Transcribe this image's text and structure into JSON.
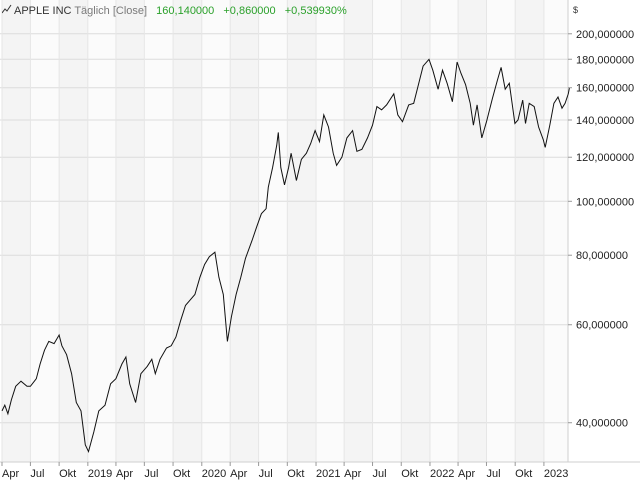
{
  "header": {
    "name": "APPLE INC",
    "interval": "Täglich",
    "mode": "[Close]",
    "last": "160,140000",
    "change": "+0,860000",
    "change_pct": "+0,539930%",
    "icon": "line-chart-icon",
    "change_color": "#2aa02a"
  },
  "chart_data": {
    "type": "line",
    "title": "APPLE INC",
    "y_scale": "log",
    "y_unit": "$",
    "ylim": [
      34,
      210
    ],
    "grid": true,
    "y_ticks": [
      {
        "value": 40,
        "label": "40,000000"
      },
      {
        "value": 60,
        "label": "60,000000"
      },
      {
        "value": 80,
        "label": "80,000000"
      },
      {
        "value": 100,
        "label": "100,000000"
      },
      {
        "value": 120,
        "label": "120,000000"
      },
      {
        "value": 140,
        "label": "140,000000"
      },
      {
        "value": 160,
        "label": "160,000000"
      },
      {
        "value": 180,
        "label": "180,000000"
      },
      {
        "value": 200,
        "label": "200,000000"
      }
    ],
    "x_range": [
      "2018-04-01",
      "2023-03-31"
    ],
    "x_ticks": [
      {
        "date": "2018-04-01",
        "label": "Apr"
      },
      {
        "date": "2018-07-01",
        "label": "Jul"
      },
      {
        "date": "2018-10-01",
        "label": "Okt"
      },
      {
        "date": "2019-01-01",
        "label": "2019"
      },
      {
        "date": "2019-04-01",
        "label": "Apr"
      },
      {
        "date": "2019-07-01",
        "label": "Jul"
      },
      {
        "date": "2019-10-01",
        "label": "Okt"
      },
      {
        "date": "2020-01-01",
        "label": "2020"
      },
      {
        "date": "2020-04-01",
        "label": "Apr"
      },
      {
        "date": "2020-07-01",
        "label": "Jul"
      },
      {
        "date": "2020-10-01",
        "label": "Okt"
      },
      {
        "date": "2021-01-01",
        "label": "2021"
      },
      {
        "date": "2021-04-01",
        "label": "Apr"
      },
      {
        "date": "2021-07-01",
        "label": "Jul"
      },
      {
        "date": "2021-10-01",
        "label": "Okt"
      },
      {
        "date": "2022-01-01",
        "label": "2022"
      },
      {
        "date": "2022-04-01",
        "label": "Apr"
      },
      {
        "date": "2022-07-01",
        "label": "Jul"
      },
      {
        "date": "2022-10-01",
        "label": "Okt"
      },
      {
        "date": "2023-01-01",
        "label": "2023"
      }
    ],
    "series": [
      {
        "color": "#111111",
        "points": [
          [
            "2018-04-01",
            42
          ],
          [
            "2018-04-10",
            43
          ],
          [
            "2018-04-20",
            41.5
          ],
          [
            "2018-05-01",
            44
          ],
          [
            "2018-05-15",
            46.5
          ],
          [
            "2018-06-01",
            47.5
          ],
          [
            "2018-06-20",
            46.5
          ],
          [
            "2018-07-01",
            46.5
          ],
          [
            "2018-07-20",
            48
          ],
          [
            "2018-08-01",
            51
          ],
          [
            "2018-08-15",
            54
          ],
          [
            "2018-08-29",
            56
          ],
          [
            "2018-09-15",
            55.5
          ],
          [
            "2018-10-01",
            57.5
          ],
          [
            "2018-10-10",
            55
          ],
          [
            "2018-10-25",
            53
          ],
          [
            "2018-11-10",
            49
          ],
          [
            "2018-11-25",
            43.5
          ],
          [
            "2018-12-10",
            42
          ],
          [
            "2018-12-24",
            36.5
          ],
          [
            "2019-01-03",
            35.5
          ],
          [
            "2019-01-20",
            38.5
          ],
          [
            "2019-02-05",
            42
          ],
          [
            "2019-02-25",
            43
          ],
          [
            "2019-03-15",
            47
          ],
          [
            "2019-04-01",
            48
          ],
          [
            "2019-04-20",
            51
          ],
          [
            "2019-05-03",
            52.5
          ],
          [
            "2019-05-15",
            47
          ],
          [
            "2019-06-03",
            43.5
          ],
          [
            "2019-06-20",
            49
          ],
          [
            "2019-07-10",
            50.5
          ],
          [
            "2019-07-25",
            52
          ],
          [
            "2019-08-05",
            49
          ],
          [
            "2019-08-20",
            52
          ],
          [
            "2019-09-10",
            54.5
          ],
          [
            "2019-09-25",
            55
          ],
          [
            "2019-10-10",
            57
          ],
          [
            "2019-10-25",
            61
          ],
          [
            "2019-11-10",
            65
          ],
          [
            "2019-11-25",
            66.5
          ],
          [
            "2019-12-10",
            68
          ],
          [
            "2019-12-26",
            73
          ],
          [
            "2020-01-10",
            77
          ],
          [
            "2020-01-25",
            79.5
          ],
          [
            "2020-02-12",
            81
          ],
          [
            "2020-02-25",
            73
          ],
          [
            "2020-03-10",
            68
          ],
          [
            "2020-03-23",
            56
          ],
          [
            "2020-04-05",
            62
          ],
          [
            "2020-04-20",
            68
          ],
          [
            "2020-05-05",
            73
          ],
          [
            "2020-05-20",
            79
          ],
          [
            "2020-06-10",
            85
          ],
          [
            "2020-06-25",
            90
          ],
          [
            "2020-07-10",
            95
          ],
          [
            "2020-07-25",
            97
          ],
          [
            "2020-08-01",
            106
          ],
          [
            "2020-08-15",
            115
          ],
          [
            "2020-08-28",
            126
          ],
          [
            "2020-09-02",
            133
          ],
          [
            "2020-09-10",
            115
          ],
          [
            "2020-09-22",
            107
          ],
          [
            "2020-10-05",
            115
          ],
          [
            "2020-10-13",
            122
          ],
          [
            "2020-10-30",
            109
          ],
          [
            "2020-11-15",
            119
          ],
          [
            "2020-12-01",
            122
          ],
          [
            "2020-12-15",
            127
          ],
          [
            "2020-12-29",
            134
          ],
          [
            "2021-01-12",
            128
          ],
          [
            "2021-01-26",
            143
          ],
          [
            "2021-02-10",
            136
          ],
          [
            "2021-02-25",
            122
          ],
          [
            "2021-03-08",
            116
          ],
          [
            "2021-03-25",
            120
          ],
          [
            "2021-04-10",
            130
          ],
          [
            "2021-04-28",
            134
          ],
          [
            "2021-05-12",
            123
          ],
          [
            "2021-05-28",
            124
          ],
          [
            "2021-06-15",
            130
          ],
          [
            "2021-07-01",
            137
          ],
          [
            "2021-07-15",
            148
          ],
          [
            "2021-07-30",
            146
          ],
          [
            "2021-08-15",
            149
          ],
          [
            "2021-09-07",
            156
          ],
          [
            "2021-09-20",
            143
          ],
          [
            "2021-10-05",
            139
          ],
          [
            "2021-10-25",
            149
          ],
          [
            "2021-11-10",
            150
          ],
          [
            "2021-11-25",
            162
          ],
          [
            "2021-12-10",
            175
          ],
          [
            "2021-12-29",
            180
          ],
          [
            "2022-01-10",
            172
          ],
          [
            "2022-01-27",
            159
          ],
          [
            "2022-02-10",
            172
          ],
          [
            "2022-02-25",
            163
          ],
          [
            "2022-03-14",
            151
          ],
          [
            "2022-03-29",
            178
          ],
          [
            "2022-04-10",
            170
          ],
          [
            "2022-04-25",
            162
          ],
          [
            "2022-05-10",
            150
          ],
          [
            "2022-05-20",
            137
          ],
          [
            "2022-06-01",
            149
          ],
          [
            "2022-06-16",
            130
          ],
          [
            "2022-07-01",
            139
          ],
          [
            "2022-07-20",
            153
          ],
          [
            "2022-08-05",
            165
          ],
          [
            "2022-08-17",
            174
          ],
          [
            "2022-08-30",
            159
          ],
          [
            "2022-09-12",
            163
          ],
          [
            "2022-09-30",
            138
          ],
          [
            "2022-10-10",
            140
          ],
          [
            "2022-10-25",
            152
          ],
          [
            "2022-11-03",
            138
          ],
          [
            "2022-11-15",
            150
          ],
          [
            "2022-12-01",
            148
          ],
          [
            "2022-12-15",
            136
          ],
          [
            "2022-12-30",
            129
          ],
          [
            "2023-01-05",
            125
          ],
          [
            "2023-01-20",
            137
          ],
          [
            "2023-02-02",
            150
          ],
          [
            "2023-02-15",
            154
          ],
          [
            "2023-02-28",
            147
          ],
          [
            "2023-03-10",
            150
          ],
          [
            "2023-03-20",
            156
          ],
          [
            "2023-03-24",
            160.14
          ]
        ]
      }
    ]
  }
}
